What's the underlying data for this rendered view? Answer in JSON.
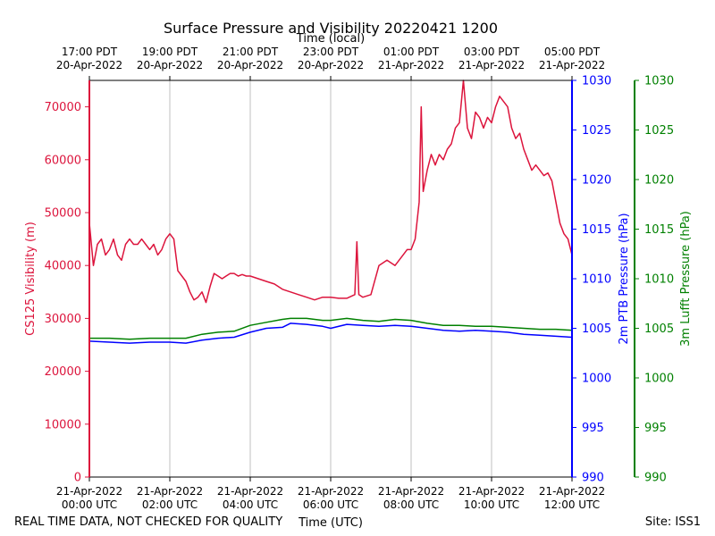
{
  "chart_data": {
    "type": "line",
    "title": "Surface Pressure and Visibility 20220421 1200",
    "top_axis_label": "Time (local)",
    "bottom_axis_label": "Time (UTC)",
    "footer_left": "REAL TIME DATA, NOT CHECKED FOR QUALITY",
    "footer_right": "Site: ISS1",
    "grid": "vertical",
    "x_range_hours_utc": [
      0,
      12
    ],
    "bottom_ticks": [
      {
        "h": 0,
        "date": "21-Apr-2022",
        "time": "00:00 UTC"
      },
      {
        "h": 2,
        "date": "21-Apr-2022",
        "time": "02:00 UTC"
      },
      {
        "h": 4,
        "date": "21-Apr-2022",
        "time": "04:00 UTC"
      },
      {
        "h": 6,
        "date": "21-Apr-2022",
        "time": "06:00 UTC"
      },
      {
        "h": 8,
        "date": "21-Apr-2022",
        "time": "08:00 UTC"
      },
      {
        "h": 10,
        "date": "21-Apr-2022",
        "time": "10:00 UTC"
      },
      {
        "h": 12,
        "date": "21-Apr-2022",
        "time": "12:00 UTC"
      }
    ],
    "top_ticks": [
      {
        "h": 0,
        "time": "17:00 PDT",
        "date": "20-Apr-2022"
      },
      {
        "h": 2,
        "time": "19:00 PDT",
        "date": "20-Apr-2022"
      },
      {
        "h": 4,
        "time": "21:00 PDT",
        "date": "20-Apr-2022"
      },
      {
        "h": 6,
        "time": "23:00 PDT",
        "date": "20-Apr-2022"
      },
      {
        "h": 8,
        "time": "01:00 PDT",
        "date": "21-Apr-2022"
      },
      {
        "h": 10,
        "time": "03:00 PDT",
        "date": "21-Apr-2022"
      },
      {
        "h": 12,
        "time": "05:00 PDT",
        "date": "21-Apr-2022"
      }
    ],
    "axes": {
      "visibility": {
        "label": "CS125 Visibility (m)",
        "ylim": [
          0,
          75000
        ],
        "ticks": [
          "0",
          "10000",
          "20000",
          "30000",
          "40000",
          "50000",
          "60000",
          "70000"
        ],
        "color": "#dc143c"
      },
      "ptb": {
        "label": "2m PTB Pressure (hPa)",
        "ylim": [
          990,
          1030
        ],
        "ticks": [
          "990",
          "995",
          "1000",
          "1005",
          "1010",
          "1015",
          "1020",
          "1025",
          "1030"
        ],
        "color": "#0000ff"
      },
      "lufft": {
        "label": "3m Lufft Pressure (hPa)",
        "ylim": [
          990,
          1030
        ],
        "ticks": [
          "990",
          "995",
          "1000",
          "1005",
          "1010",
          "1015",
          "1020",
          "1025",
          "1030"
        ],
        "color": "#008000"
      }
    },
    "series": [
      {
        "axis": "visibility",
        "color": "#dc143c",
        "x": [
          0,
          0.1,
          0.2,
          0.3,
          0.4,
          0.5,
          0.6,
          0.7,
          0.8,
          0.9,
          1.0,
          1.1,
          1.2,
          1.3,
          1.4,
          1.5,
          1.6,
          1.7,
          1.8,
          1.9,
          2.0,
          2.1,
          2.2,
          2.3,
          2.4,
          2.5,
          2.6,
          2.7,
          2.8,
          2.9,
          3.0,
          3.1,
          3.2,
          3.3,
          3.4,
          3.5,
          3.6,
          3.7,
          3.8,
          3.9,
          4.0,
          4.2,
          4.4,
          4.6,
          4.8,
          5.0,
          5.2,
          5.4,
          5.6,
          5.8,
          6.0,
          6.2,
          6.4,
          6.6,
          6.65,
          6.7,
          6.8,
          7.0,
          7.2,
          7.4,
          7.6,
          7.8,
          7.9,
          8.0,
          8.1,
          8.2,
          8.25,
          8.3,
          8.4,
          8.5,
          8.6,
          8.7,
          8.8,
          8.9,
          9.0,
          9.1,
          9.2,
          9.3,
          9.4,
          9.5,
          9.6,
          9.7,
          9.8,
          9.9,
          10.0,
          10.1,
          10.2,
          10.3,
          10.4,
          10.5,
          10.6,
          10.7,
          10.8,
          10.9,
          11.0,
          11.1,
          11.2,
          11.3,
          11.4,
          11.5,
          11.6,
          11.7,
          11.8,
          11.9,
          12.0
        ],
        "values": [
          48000,
          40000,
          44000,
          45000,
          42000,
          43000,
          45000,
          42000,
          41000,
          44000,
          45000,
          44000,
          44000,
          45000,
          44000,
          43000,
          44000,
          42000,
          43000,
          45000,
          46000,
          45000,
          39000,
          38000,
          37000,
          35000,
          33500,
          34000,
          35000,
          33000,
          36000,
          38500,
          38000,
          37500,
          38000,
          38500,
          38500,
          38000,
          38300,
          38000,
          38000,
          37500,
          37000,
          36500,
          35500,
          35000,
          34500,
          34000,
          33500,
          34000,
          34000,
          33800,
          33800,
          34500,
          44500,
          34500,
          34000,
          34500,
          40000,
          41000,
          40000,
          42000,
          43000,
          43000,
          45000,
          52000,
          70000,
          54000,
          58000,
          61000,
          59000,
          61000,
          60000,
          62000,
          63000,
          66000,
          67000,
          75000,
          66000,
          64000,
          69000,
          68000,
          66000,
          68000,
          67000,
          70000,
          72000,
          71000,
          70000,
          66000,
          64000,
          65000,
          62000,
          60000,
          58000,
          59000,
          58000,
          57000,
          57500,
          56000,
          52000,
          48000,
          46000,
          45000,
          42000
        ]
      },
      {
        "axis": "ptb",
        "color": "#0000ff",
        "x": [
          0,
          0.5,
          1.0,
          1.5,
          2.0,
          2.4,
          2.8,
          3.2,
          3.6,
          4.0,
          4.4,
          4.8,
          5.0,
          5.4,
          5.8,
          6.0,
          6.4,
          6.8,
          7.2,
          7.6,
          8.0,
          8.4,
          8.8,
          9.2,
          9.6,
          10.0,
          10.4,
          10.8,
          11.2,
          11.6,
          12.0
        ],
        "values": [
          1003.7,
          1003.6,
          1003.5,
          1003.6,
          1003.6,
          1003.5,
          1003.8,
          1004.0,
          1004.1,
          1004.6,
          1005.0,
          1005.1,
          1005.5,
          1005.4,
          1005.2,
          1005.0,
          1005.4,
          1005.3,
          1005.2,
          1005.3,
          1005.2,
          1005.0,
          1004.8,
          1004.7,
          1004.8,
          1004.7,
          1004.6,
          1004.4,
          1004.3,
          1004.2,
          1004.1
        ]
      },
      {
        "axis": "lufft",
        "color": "#008000",
        "x": [
          0,
          0.5,
          1.0,
          1.5,
          2.0,
          2.4,
          2.8,
          3.2,
          3.6,
          4.0,
          4.4,
          4.8,
          5.0,
          5.4,
          5.8,
          6.0,
          6.4,
          6.8,
          7.2,
          7.6,
          8.0,
          8.4,
          8.8,
          9.2,
          9.6,
          10.0,
          10.4,
          10.8,
          11.2,
          11.6,
          12.0
        ],
        "values": [
          1004.0,
          1004.0,
          1003.9,
          1004.0,
          1004.0,
          1004.0,
          1004.4,
          1004.6,
          1004.7,
          1005.3,
          1005.6,
          1005.9,
          1006.0,
          1006.0,
          1005.8,
          1005.8,
          1006.0,
          1005.8,
          1005.7,
          1005.9,
          1005.8,
          1005.5,
          1005.3,
          1005.3,
          1005.2,
          1005.2,
          1005.1,
          1005.0,
          1004.9,
          1004.9,
          1004.8
        ]
      }
    ]
  }
}
